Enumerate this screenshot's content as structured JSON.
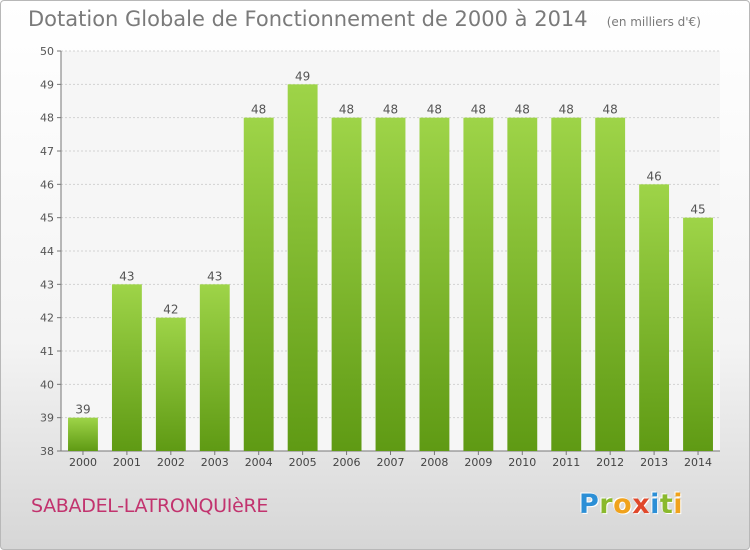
{
  "chart_data": {
    "type": "bar",
    "title": "Dotation Globale de Fonctionnement de 2000 à 2014",
    "subtitle": "(en milliers d'€)",
    "categories": [
      "2000",
      "2001",
      "2002",
      "2003",
      "2004",
      "2005",
      "2006",
      "2007",
      "2008",
      "2009",
      "2010",
      "2011",
      "2012",
      "2013",
      "2014"
    ],
    "values": [
      39,
      43,
      42,
      43,
      48,
      49,
      48,
      48,
      48,
      48,
      48,
      48,
      48,
      46,
      45
    ],
    "data_labels": [
      "39",
      "43",
      "42",
      "43",
      "48",
      "49",
      "48",
      "48",
      "48",
      "48",
      "48",
      "48",
      "48",
      "46",
      "45"
    ],
    "y_ticks": [
      38,
      39,
      40,
      41,
      42,
      43,
      44,
      45,
      46,
      47,
      48,
      49,
      50
    ],
    "ylim": [
      38,
      50
    ],
    "grid": true,
    "bar_color": "#86c232"
  },
  "footer": {
    "commune": "SABADEL-LATRONQUIèRE",
    "logo_letters": [
      "P",
      "r",
      "o",
      "x",
      "i",
      "t",
      "i"
    ],
    "logo_colors": [
      "#2c8fd6",
      "#8ab92d",
      "#f0a21c",
      "#e0482b",
      "#2c8fd6",
      "#8ab92d",
      "#f0a21c"
    ]
  }
}
